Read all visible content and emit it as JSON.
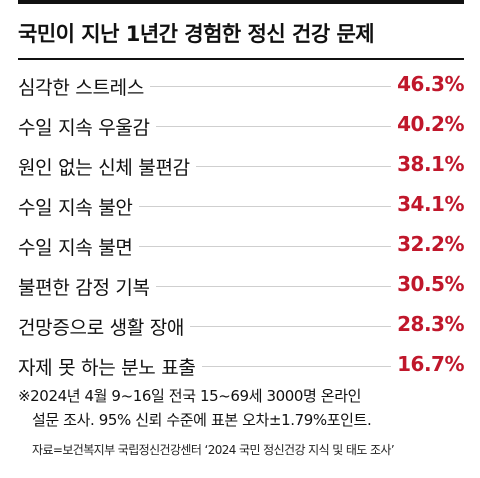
{
  "title": "국민이 지난 1년간 경험한 정신 건강 문제",
  "chart_data": {
    "type": "table",
    "title": "국민이 지난 1년간 경험한 정신 건강 문제",
    "unit": "%",
    "categories": [
      "심각한 스트레스",
      "수일 지속 우울감",
      "원인 없는 신체 불편감",
      "수일 지속 불안",
      "수일 지속 불면",
      "불편한 감정 기복",
      "건망증으로 생활 장애",
      "자제 못 하는 분노 표출"
    ],
    "values": [
      46.3,
      40.2,
      38.1,
      34.1,
      32.2,
      30.5,
      28.3,
      16.7
    ],
    "value_labels": [
      "46.3%",
      "40.2%",
      "38.1%",
      "34.1%",
      "32.2%",
      "30.5%",
      "28.3%",
      "16.7%"
    ],
    "value_color": "#c0172b"
  },
  "note": {
    "line1": "※2024년 4월 9~16일 전국 15~69세 3000명 온라인",
    "line2": "설문 조사. 95% 신뢰 수준에 표본 오차±1.79%포인트."
  },
  "source": "자료=보건복지부 국립정신건강센터 ‘2024 국민 정신건강 지식 및 태도 조사’"
}
